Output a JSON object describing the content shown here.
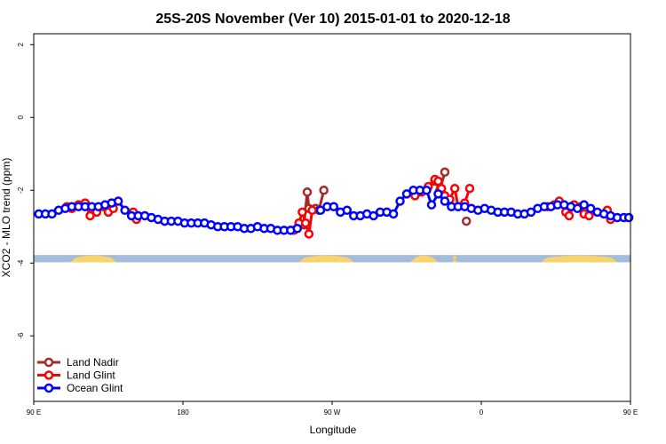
{
  "chart_data": {
    "type": "line",
    "title": "25S-20S November (Ver 10)   2015-01-01 to 2020-12-18",
    "xlabel": "Longitude",
    "ylabel": "XCO2 - MLO trend (ppm)",
    "xlim": [
      0,
      360
    ],
    "ylim": [
      -7.8,
      2.3
    ],
    "x_ticks": [
      {
        "value": 0,
        "label": "90 E"
      },
      {
        "value": 90,
        "label": "180"
      },
      {
        "value": 180,
        "label": "90 W"
      },
      {
        "value": 270,
        "label": "0"
      },
      {
        "value": 360,
        "label": "90 E"
      }
    ],
    "y_ticks": [
      {
        "value": 2,
        "label": "2"
      },
      {
        "value": 0,
        "label": "0"
      },
      {
        "value": -2,
        "label": "-2"
      },
      {
        "value": -4,
        "label": "-4"
      },
      {
        "value": -6,
        "label": "-6"
      }
    ],
    "land_mask": {
      "y_range": [
        -3.98,
        -3.78
      ],
      "ocean_color": "#a3bbdc",
      "land_color": "#f8d46a",
      "land_segments": [
        [
          22,
          50
        ],
        [
          160,
          193
        ],
        [
          227,
          244
        ],
        [
          252,
          256
        ],
        [
          306,
          352
        ]
      ]
    },
    "legend_position": "bottom-left",
    "series": [
      {
        "name": "Land Nadir",
        "color": "#a52a2a",
        "points": [
          [
            163,
            -2.95
          ],
          [
            165,
            -2.05
          ],
          [
            166,
            -2.5
          ],
          [
            170,
            -2.5
          ],
          [
            172,
            -2.55
          ],
          [
            175,
            -2.0
          ],
          [
            242,
            -1.75
          ],
          [
            245,
            -2.0
          ],
          [
            248,
            -1.5
          ],
          [
            261,
            -2.85
          ]
        ]
      },
      {
        "name": "Land Glint",
        "color": "#ff0000",
        "points": [
          [
            20,
            -2.45
          ],
          [
            23,
            -2.5
          ],
          [
            27,
            -2.4
          ],
          [
            31,
            -2.35
          ],
          [
            34,
            -2.7
          ],
          [
            38,
            -2.6
          ],
          [
            42,
            -2.45
          ],
          [
            45,
            -2.6
          ],
          [
            48,
            -2.5
          ],
          [
            60,
            -2.6
          ],
          [
            62,
            -2.8
          ],
          [
            157,
            -3.1
          ],
          [
            160,
            -2.9
          ],
          [
            162,
            -2.6
          ],
          [
            164,
            -2.9
          ],
          [
            166,
            -3.2
          ],
          [
            168,
            -2.55
          ],
          [
            230,
            -2.15
          ],
          [
            234,
            -2.05
          ],
          [
            238,
            -1.9
          ],
          [
            242,
            -1.7
          ],
          [
            244,
            -1.75
          ],
          [
            246,
            -1.95
          ],
          [
            248,
            -2.15
          ],
          [
            251,
            -2.25
          ],
          [
            254,
            -1.95
          ],
          [
            256,
            -2.45
          ],
          [
            260,
            -2.35
          ],
          [
            263,
            -1.95
          ],
          [
            310,
            -2.45
          ],
          [
            314,
            -2.4
          ],
          [
            317,
            -2.3
          ],
          [
            321,
            -2.6
          ],
          [
            323,
            -2.7
          ],
          [
            326,
            -2.4
          ],
          [
            330,
            -2.45
          ],
          [
            332,
            -2.65
          ],
          [
            335,
            -2.7
          ],
          [
            346,
            -2.55
          ],
          [
            348,
            -2.8
          ]
        ]
      },
      {
        "name": "Ocean Glint",
        "color": "#0000ff",
        "points": [
          [
            3,
            -2.65
          ],
          [
            7,
            -2.65
          ],
          [
            11,
            -2.65
          ],
          [
            15,
            -2.55
          ],
          [
            19,
            -2.5
          ],
          [
            23,
            -2.45
          ],
          [
            27,
            -2.45
          ],
          [
            31,
            -2.45
          ],
          [
            35,
            -2.45
          ],
          [
            39,
            -2.45
          ],
          [
            43,
            -2.4
          ],
          [
            47,
            -2.35
          ],
          [
            51,
            -2.3
          ],
          [
            55,
            -2.55
          ],
          [
            59,
            -2.7
          ],
          [
            63,
            -2.7
          ],
          [
            67,
            -2.7
          ],
          [
            71,
            -2.75
          ],
          [
            75,
            -2.8
          ],
          [
            79,
            -2.85
          ],
          [
            83,
            -2.85
          ],
          [
            87,
            -2.85
          ],
          [
            91,
            -2.9
          ],
          [
            95,
            -2.9
          ],
          [
            99,
            -2.9
          ],
          [
            103,
            -2.9
          ],
          [
            107,
            -2.95
          ],
          [
            111,
            -3.0
          ],
          [
            115,
            -3.0
          ],
          [
            119,
            -3.0
          ],
          [
            123,
            -3.0
          ],
          [
            127,
            -3.05
          ],
          [
            131,
            -3.05
          ],
          [
            135,
            -3.0
          ],
          [
            139,
            -3.05
          ],
          [
            143,
            -3.05
          ],
          [
            147,
            -3.1
          ],
          [
            151,
            -3.1
          ],
          [
            155,
            -3.1
          ],
          [
            159,
            -3.05
          ],
          [
            173,
            -2.55
          ],
          [
            177,
            -2.45
          ],
          [
            181,
            -2.45
          ],
          [
            185,
            -2.6
          ],
          [
            189,
            -2.55
          ],
          [
            193,
            -2.7
          ],
          [
            197,
            -2.7
          ],
          [
            201,
            -2.65
          ],
          [
            205,
            -2.7
          ],
          [
            209,
            -2.6
          ],
          [
            213,
            -2.6
          ],
          [
            217,
            -2.65
          ],
          [
            221,
            -2.3
          ],
          [
            225,
            -2.1
          ],
          [
            229,
            -2.0
          ],
          [
            233,
            -2.0
          ],
          [
            237,
            -2.0
          ],
          [
            240,
            -2.4
          ],
          [
            244,
            -2.1
          ],
          [
            248,
            -2.3
          ],
          [
            252,
            -2.45
          ],
          [
            256,
            -2.45
          ],
          [
            260,
            -2.45
          ],
          [
            264,
            -2.5
          ],
          [
            268,
            -2.55
          ],
          [
            272,
            -2.5
          ],
          [
            276,
            -2.55
          ],
          [
            280,
            -2.6
          ],
          [
            284,
            -2.6
          ],
          [
            288,
            -2.6
          ],
          [
            292,
            -2.65
          ],
          [
            296,
            -2.65
          ],
          [
            300,
            -2.6
          ],
          [
            304,
            -2.5
          ],
          [
            308,
            -2.45
          ],
          [
            312,
            -2.45
          ],
          [
            316,
            -2.4
          ],
          [
            320,
            -2.4
          ],
          [
            324,
            -2.45
          ],
          [
            328,
            -2.5
          ],
          [
            332,
            -2.4
          ],
          [
            336,
            -2.5
          ],
          [
            340,
            -2.6
          ],
          [
            344,
            -2.65
          ],
          [
            348,
            -2.7
          ],
          [
            352,
            -2.75
          ],
          [
            356,
            -2.75
          ],
          [
            359,
            -2.75
          ]
        ]
      }
    ]
  }
}
